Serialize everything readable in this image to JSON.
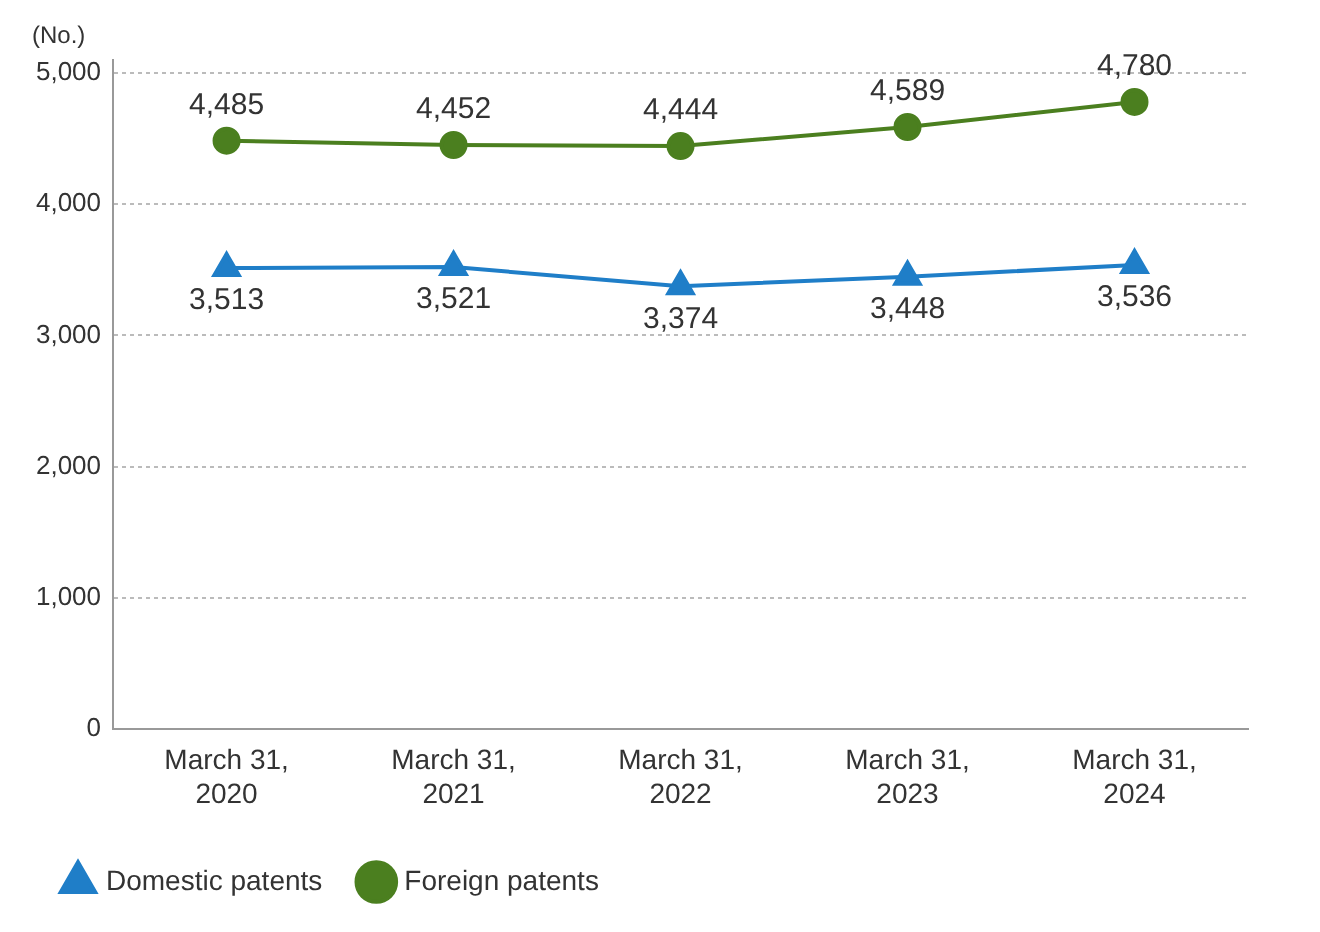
{
  "chart_data": {
    "type": "line",
    "ylabel": "(No.)",
    "categories": [
      "March 31, 2020",
      "March 31, 2021",
      "March 31, 2022",
      "March 31, 2023",
      "March 31, 2024"
    ],
    "series": [
      {
        "name": "Domestic patents",
        "color": "#1f7ec8",
        "marker": "triangle",
        "values": [
          3513,
          3521,
          3374,
          3448,
          3536
        ],
        "value_labels": [
          "3,513",
          "3,521",
          "3,374",
          "3,448",
          "3,536"
        ]
      },
      {
        "name": "Foreign patents",
        "color": "#4b7f1f",
        "marker": "circle",
        "values": [
          4485,
          4452,
          4444,
          4589,
          4780
        ],
        "value_labels": [
          "4,485",
          "4,452",
          "4,444",
          "4,589",
          "4,780"
        ]
      }
    ],
    "ylim": [
      0,
      5100
    ],
    "yticks": [
      0,
      {
        "value": 1000,
        "label": "1,000"
      },
      {
        "value": 2000,
        "label": "2,000"
      },
      {
        "value": 3000,
        "label": "3,000"
      },
      {
        "value": 4000,
        "label": "4,000"
      },
      {
        "value": 5000,
        "label": "5,000"
      }
    ],
    "grid": "y",
    "legend": "bottom",
    "line_style": "solid"
  }
}
